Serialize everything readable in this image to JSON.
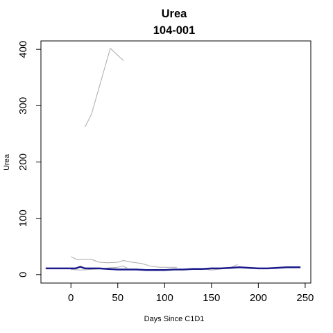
{
  "chart_data": {
    "type": "line",
    "title": "Urea",
    "subtitle": "104-001",
    "xlabel": "Days Since C1D1",
    "ylabel": "Urea",
    "xlim": [
      -32,
      256
    ],
    "ylim": [
      -15,
      415
    ],
    "x_ticks": [
      0,
      50,
      100,
      150,
      200,
      250
    ],
    "y_ticks": [
      0,
      100,
      200,
      300,
      400
    ],
    "grid": false,
    "legend": "none",
    "colors": {
      "reference": "#aaaaaa",
      "highlight": "#1a1a8c"
    },
    "series": [
      {
        "role": "reference",
        "x": [
          15,
          22,
          42,
          56
        ],
        "y": [
          262,
          285,
          402,
          380
        ]
      },
      {
        "role": "reference",
        "x": [
          0,
          7,
          14,
          22,
          30,
          40,
          50,
          56,
          65,
          75,
          85,
          95,
          105,
          113
        ],
        "y": [
          32,
          26,
          27,
          27,
          22,
          21,
          22,
          25,
          22,
          20,
          15,
          13,
          13,
          13
        ]
      },
      {
        "role": "reference",
        "x": [
          140,
          150,
          160,
          170,
          178
        ],
        "y": [
          10,
          8,
          10,
          12,
          18
        ]
      },
      {
        "role": "reference",
        "x": [
          0,
          10,
          20,
          30,
          40,
          50,
          55,
          60
        ],
        "y": [
          9,
          8,
          9,
          10,
          12,
          13,
          15,
          12
        ]
      },
      {
        "role": "highlight",
        "x": [
          -27,
          -15,
          -5,
          5,
          10,
          15,
          22,
          30,
          40,
          50,
          60,
          70,
          80,
          90,
          100,
          110,
          120,
          130,
          140,
          150,
          160,
          170,
          180,
          190,
          200,
          210,
          220,
          230,
          245
        ],
        "y": [
          11,
          11,
          11,
          11,
          14,
          11,
          11,
          11,
          10,
          9,
          9,
          9,
          8,
          8,
          8,
          9,
          9,
          10,
          10,
          11,
          11,
          12,
          13,
          12,
          11,
          11,
          12,
          13,
          13
        ]
      }
    ]
  }
}
